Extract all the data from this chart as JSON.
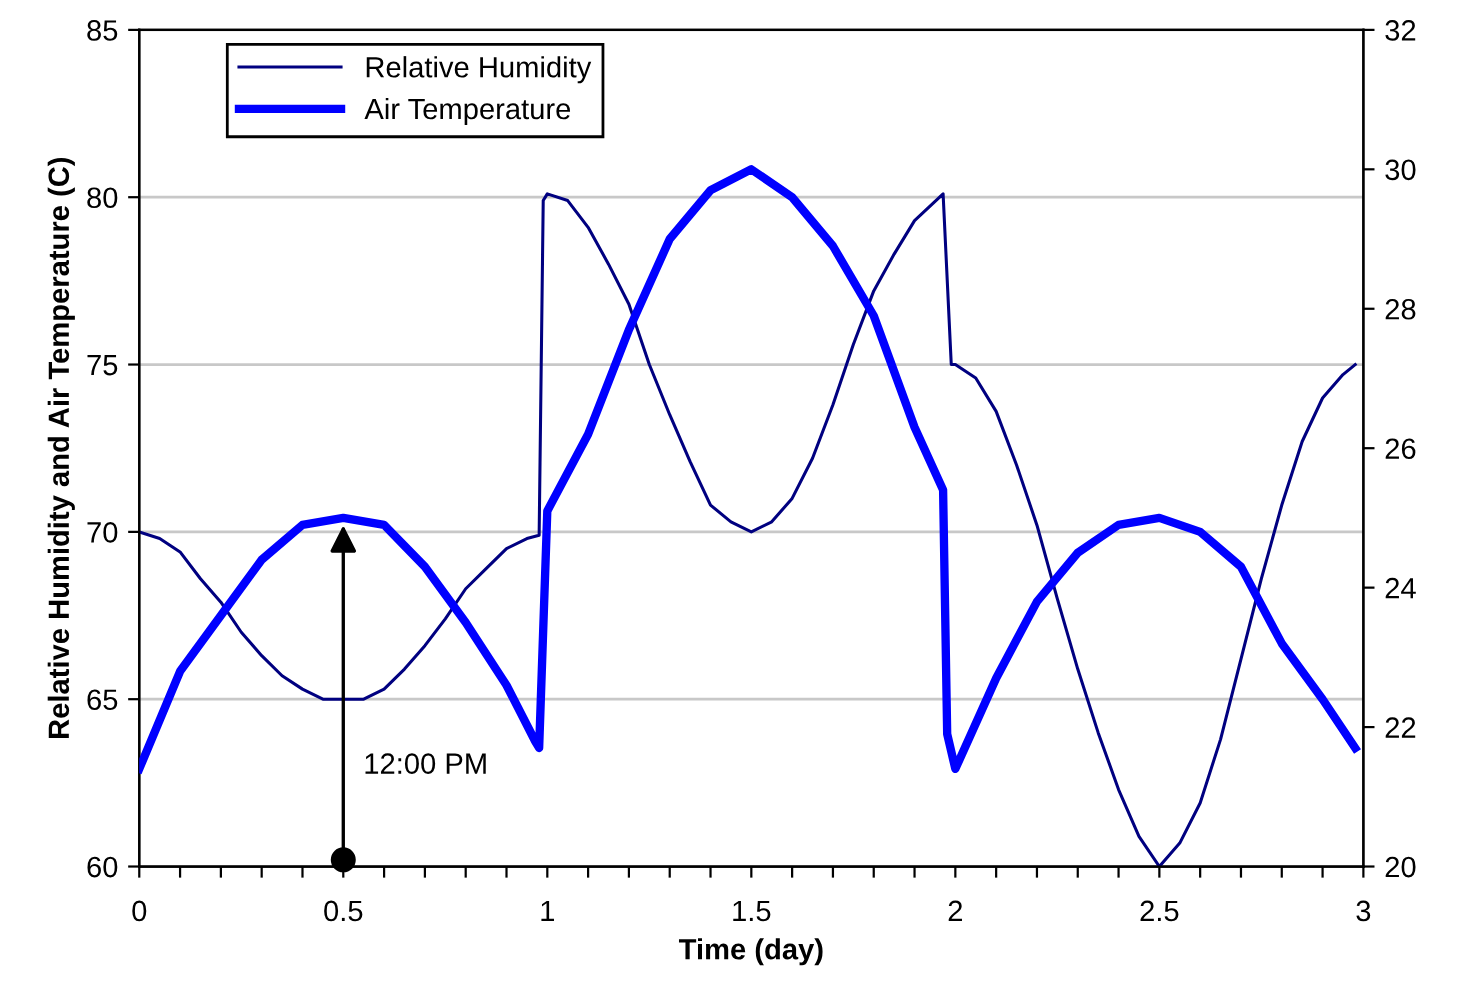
{
  "chart_data": {
    "type": "line",
    "xlabel": "Time (day)",
    "ylabel": "Relative Humidity and Air Temperature (C)",
    "xlim": [
      0,
      3
    ],
    "xticks": [
      0,
      {
        "value": 0.1,
        "label": null
      },
      {
        "value": 0.2,
        "label": null
      },
      {
        "value": 0.3,
        "label": null
      },
      {
        "value": 0.4,
        "label": null
      },
      0.5,
      {
        "value": 0.6,
        "label": null
      },
      {
        "value": 0.7,
        "label": null
      },
      {
        "value": 0.8,
        "label": null
      },
      {
        "value": 0.9,
        "label": null
      },
      1,
      {
        "value": 1.1,
        "label": null
      },
      {
        "value": 1.2,
        "label": null
      },
      {
        "value": 1.3,
        "label": null
      },
      {
        "value": 1.4,
        "label": null
      },
      1.5,
      {
        "value": 1.6,
        "label": null
      },
      {
        "value": 1.7,
        "label": null
      },
      {
        "value": 1.8,
        "label": null
      },
      {
        "value": 1.9,
        "label": null
      },
      2,
      {
        "value": 2.1,
        "label": null
      },
      {
        "value": 2.2,
        "label": null
      },
      {
        "value": 2.3,
        "label": null
      },
      {
        "value": 2.4,
        "label": null
      },
      2.5,
      {
        "value": 2.6,
        "label": null
      },
      {
        "value": 2.7,
        "label": null
      },
      {
        "value": 2.8,
        "label": null
      },
      {
        "value": 2.9,
        "label": null
      },
      3
    ],
    "ylim": [
      60,
      85
    ],
    "yticks": [
      60,
      65,
      70,
      75,
      80,
      85
    ],
    "y2lim": [
      20,
      32
    ],
    "y2ticks": [
      20,
      22,
      24,
      26,
      28,
      30,
      32
    ],
    "grid": "y",
    "legend": "top left",
    "line_style": "solid",
    "marker": "none",
    "annotations": [
      "12:00 PM"
    ],
    "series": [
      {
        "name": "Relative Humidity",
        "color": "#000080",
        "x": [
          0,
          0.05,
          0.1,
          0.15,
          0.2,
          0.25,
          0.3,
          0.35,
          0.4,
          0.45,
          0.55,
          0.6,
          0.65,
          0.7,
          0.75,
          0.8,
          0.85,
          0.9,
          0.95,
          0.98,
          0.99,
          1.0,
          1.05,
          1.1,
          1.15,
          1.2,
          1.25,
          1.3,
          1.35,
          1.4,
          1.45,
          1.5,
          1.55,
          1.6,
          1.65,
          1.7,
          1.75,
          1.8,
          1.85,
          1.9,
          1.97,
          1.99,
          2.0,
          2.05,
          2.1,
          2.15,
          2.2,
          2.25,
          2.3,
          2.35,
          2.4,
          2.45,
          2.5,
          2.55,
          2.6,
          2.65,
          2.7,
          2.75,
          2.8,
          2.85,
          2.9,
          2.95,
          2.98
        ],
        "values": [
          70,
          69.8,
          69.4,
          68.6,
          67.9,
          67,
          66.3,
          65.7,
          65.3,
          65,
          65,
          65.3,
          65.9,
          66.6,
          67.4,
          68.3,
          68.9,
          69.5,
          69.8,
          69.9,
          79.9,
          80.1,
          79.9,
          79.1,
          78,
          76.8,
          75,
          73.5,
          72.1,
          70.8,
          70.3,
          70,
          70.3,
          71,
          72.2,
          73.8,
          75.6,
          77.2,
          78.3,
          79.3,
          80.1,
          75,
          75,
          74.6,
          73.6,
          72,
          70.2,
          68,
          65.9,
          64,
          62.3,
          60.9,
          60,
          60.7,
          61.9,
          63.8,
          66.2,
          68.6,
          70.8,
          72.7,
          74,
          74.7,
          75
        ]
      },
      {
        "name": "Air Temperature",
        "color": "#0000ff",
        "axis": "y2",
        "x": [
          0,
          0.1,
          0.2,
          0.3,
          0.4,
          0.5,
          0.6,
          0.7,
          0.8,
          0.9,
          0.97,
          0.98,
          1.0,
          1.1,
          1.2,
          1.3,
          1.4,
          1.5,
          1.6,
          1.7,
          1.8,
          1.9,
          1.97,
          1.98,
          2.0,
          2.1,
          2.2,
          2.3,
          2.4,
          2.5,
          2.6,
          2.7,
          2.8,
          2.9,
          2.98
        ],
        "values": [
          21.4,
          22.8,
          23.6,
          24.4,
          24.9,
          25.0,
          24.9,
          24.3,
          23.5,
          22.6,
          21.8,
          21.7,
          25.1,
          26.2,
          27.7,
          29.0,
          29.7,
          30.0,
          29.6,
          28.9,
          27.9,
          26.3,
          25.4,
          21.9,
          21.4,
          22.7,
          23.8,
          24.5,
          24.9,
          25.0,
          24.8,
          24.3,
          23.2,
          22.4,
          21.7
        ]
      }
    ]
  }
}
